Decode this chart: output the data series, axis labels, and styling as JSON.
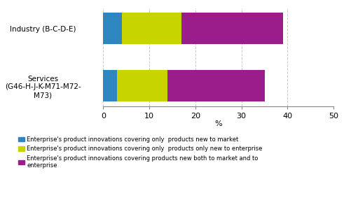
{
  "categories": [
    "Industry (B-C-D-E)",
    "Services\n(G46-H-J-K-M71-M72-\nM73)"
  ],
  "series": [
    {
      "label": "Enterprise's product innovations covering only  products new to market",
      "color": "#2E86C1",
      "values": [
        4,
        3
      ]
    },
    {
      "label": "Enterprise's product innovations covering only  products only new to enterprise",
      "color": "#C8D400",
      "values": [
        13,
        11
      ]
    },
    {
      "label": "Enterprise's product innovations covering products new both to market and to\nenterprise",
      "color": "#9B1D8C",
      "values": [
        22,
        21
      ]
    }
  ],
  "xlim": [
    0,
    50
  ],
  "xticks": [
    0,
    10,
    20,
    30,
    40,
    50
  ],
  "xlabel": "%",
  "background_color": "#ffffff",
  "grid_color": "#c8c8c8",
  "bar_height": 0.55,
  "figsize": [
    4.91,
    3.03
  ],
  "dpi": 100,
  "legend_labels": [
    "Enterprise's product innovations covering only  products new to market",
    "Enterprise's product innovations covering only  products only new to enterprise",
    "Enterprise's product innovations covering products new both to market and to\nenterprise"
  ]
}
